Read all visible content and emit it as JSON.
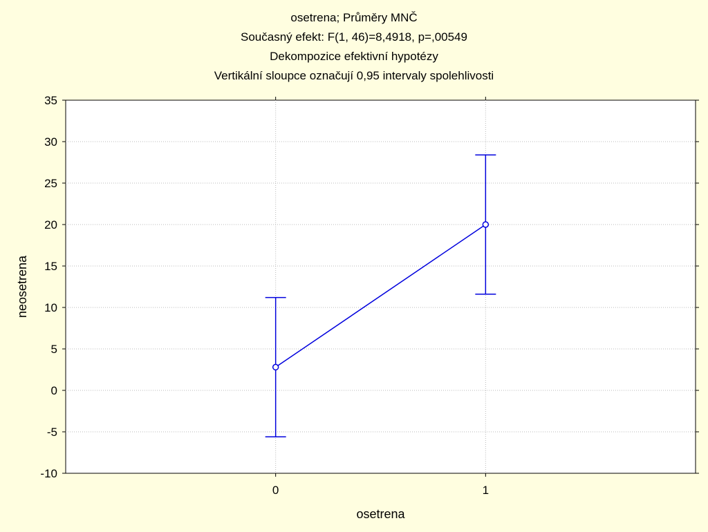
{
  "chart_data": {
    "type": "line",
    "title": [
      "osetrena; Průměry MNČ",
      "Současný efekt: F(1, 46)=8,4918, p=,00549",
      "Dekompozice efektivní hypotézy",
      "Vertikální sloupce označují 0,95 intervaly spolehlivosti"
    ],
    "xlabel": "osetrena",
    "ylabel": "neosetrena",
    "categories": [
      "0",
      "1"
    ],
    "series": [
      {
        "values": [
          2.8,
          20.0
        ],
        "ci_lower": [
          -5.6,
          11.6
        ],
        "ci_upper": [
          11.2,
          28.4
        ]
      }
    ],
    "ylim": [
      -10,
      35
    ],
    "yticks": [
      -10,
      -5,
      0,
      5,
      10,
      15,
      20,
      25,
      30,
      35
    ],
    "ytick_labels": [
      "-10",
      "-5",
      "0",
      "5",
      "10",
      "15",
      "20",
      "25",
      "30",
      "35"
    ],
    "grid": true,
    "colors": {
      "series": "#0000dd",
      "grid": "#b8b8b8",
      "background": "#fffee0"
    }
  }
}
